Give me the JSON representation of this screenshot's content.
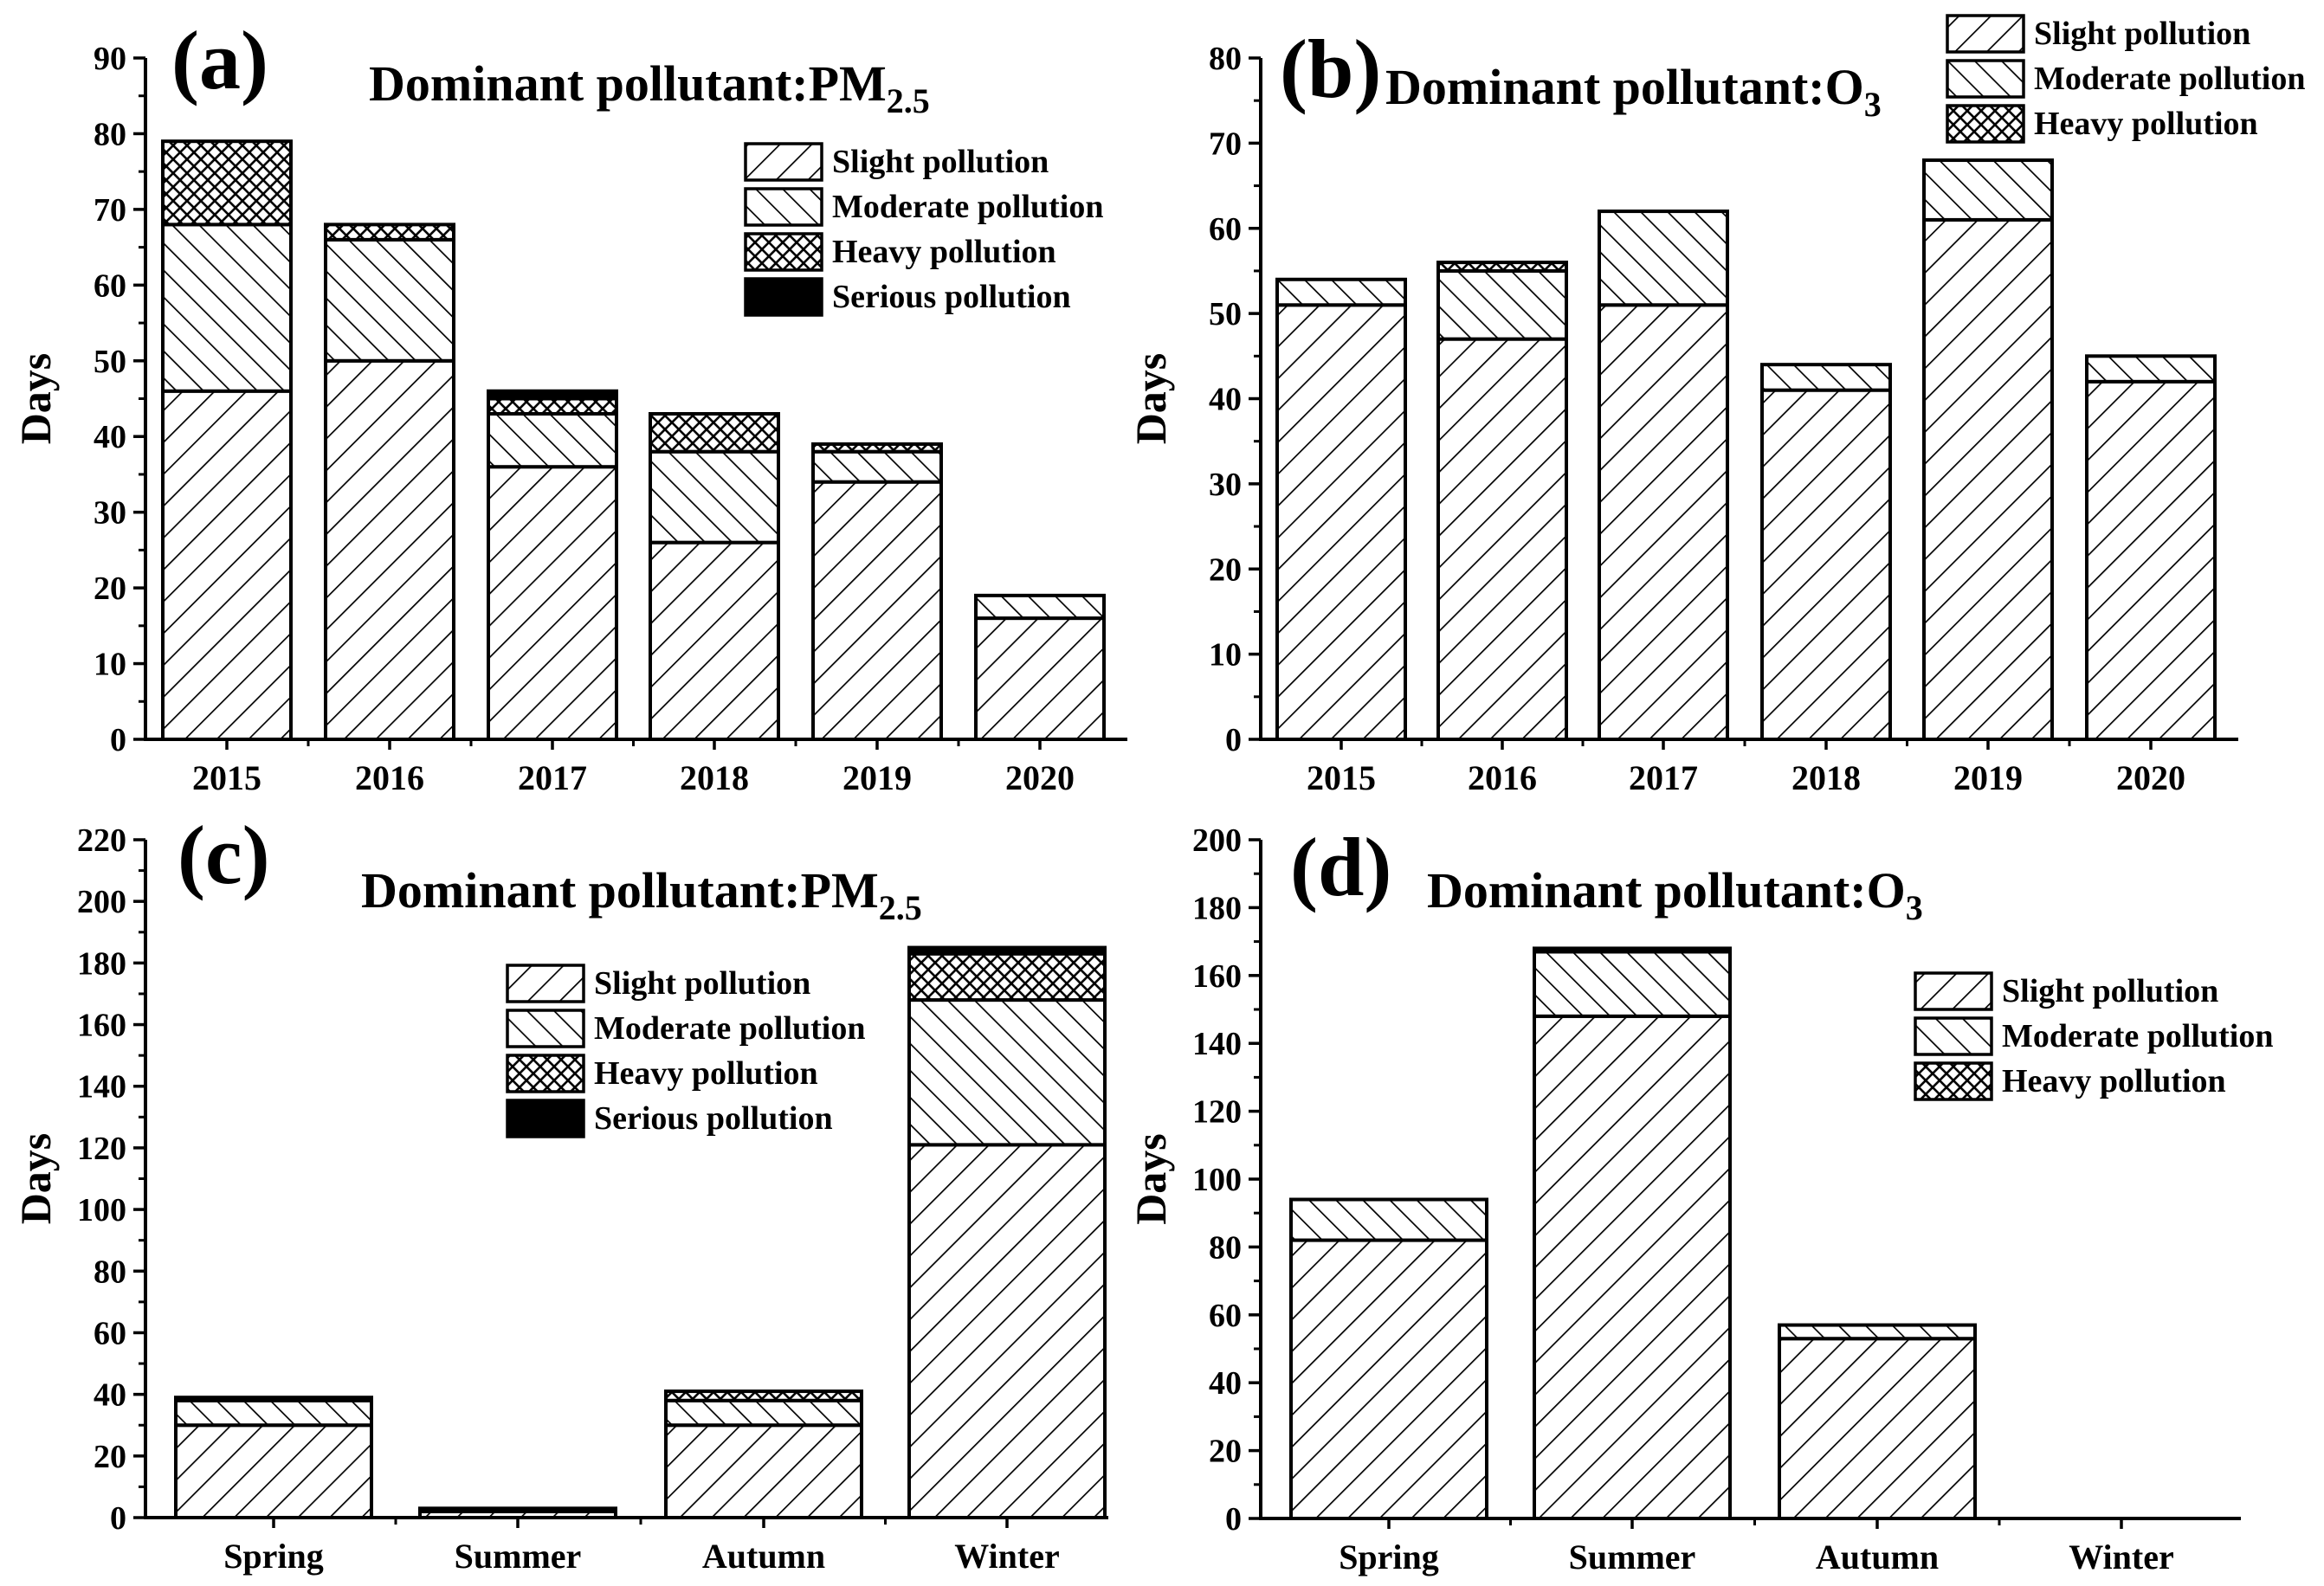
{
  "figure": {
    "colors": {
      "ink": "#000000",
      "paper": "#ffffff"
    },
    "series_patterns": {
      "Slight pollution": "hatch-fwd",
      "Moderate pollution": "hatch-back",
      "Heavy pollution": "crosshatch",
      "Serious pollution": "solid"
    }
  },
  "chart_data": [
    {
      "type": "bar",
      "stacked": true,
      "panel": "(a)",
      "title": "Dominant pollutant:PM",
      "title_sub": "2.5",
      "xlabel": "",
      "ylabel": "Days",
      "ylim": [
        0,
        90
      ],
      "yticks": [
        0,
        10,
        20,
        30,
        40,
        50,
        60,
        70,
        80,
        90
      ],
      "categories": [
        "2015",
        "2016",
        "2017",
        "2018",
        "2019",
        "2020"
      ],
      "series": [
        {
          "name": "Slight pollution",
          "values": [
            46,
            50,
            36,
            26,
            34,
            16
          ]
        },
        {
          "name": "Moderate pollution",
          "values": [
            22,
            16,
            7,
            12,
            4,
            3
          ]
        },
        {
          "name": "Heavy pollution",
          "values": [
            11,
            2,
            2,
            5,
            1,
            0
          ]
        },
        {
          "name": "Serious pollution",
          "values": [
            0,
            0,
            1,
            0,
            0,
            0
          ]
        }
      ],
      "legend": [
        "Slight pollution",
        "Moderate pollution",
        "Heavy pollution",
        "Serious pollution"
      ],
      "legend_position": "top-right"
    },
    {
      "type": "bar",
      "stacked": true,
      "panel": "(b)",
      "title": "Dominant pollutant:O",
      "title_sub": "3",
      "xlabel": "",
      "ylabel": "Days",
      "ylim": [
        0,
        80
      ],
      "yticks": [
        0,
        10,
        20,
        30,
        40,
        50,
        60,
        70,
        80
      ],
      "categories": [
        "2015",
        "2016",
        "2017",
        "2018",
        "2019",
        "2020"
      ],
      "series": [
        {
          "name": "Slight pollution",
          "values": [
            51,
            47,
            51,
            41,
            61,
            42
          ]
        },
        {
          "name": "Moderate pollution",
          "values": [
            3,
            8,
            11,
            3,
            7,
            3
          ]
        },
        {
          "name": "Heavy pollution",
          "values": [
            0,
            1,
            0,
            0,
            0,
            0
          ]
        }
      ],
      "legend": [
        "Slight pollution",
        "Moderate pollution",
        "Heavy pollution"
      ],
      "legend_position": "top-right"
    },
    {
      "type": "bar",
      "stacked": true,
      "panel": "(c)",
      "title": "Dominant pollutant:PM",
      "title_sub": "2.5",
      "xlabel": "",
      "ylabel": "Days",
      "ylim": [
        0,
        220
      ],
      "yticks": [
        0,
        20,
        40,
        60,
        80,
        100,
        120,
        140,
        160,
        180,
        200,
        220
      ],
      "categories": [
        "Spring",
        "Summer",
        "Autumn",
        "Winter"
      ],
      "series": [
        {
          "name": "Slight pollution",
          "values": [
            30,
            2,
            30,
            121
          ]
        },
        {
          "name": "Moderate pollution",
          "values": [
            8,
            1,
            8,
            47
          ]
        },
        {
          "name": "Heavy pollution",
          "values": [
            1,
            0,
            3,
            15
          ]
        },
        {
          "name": "Serious pollution",
          "values": [
            0,
            0,
            0,
            2
          ]
        }
      ],
      "legend": [
        "Slight pollution",
        "Moderate pollution",
        "Heavy pollution",
        "Serious pollution"
      ],
      "legend_position": "center"
    },
    {
      "type": "bar",
      "stacked": true,
      "panel": "(d)",
      "title": "Dominant pollutant:O",
      "title_sub": "3",
      "xlabel": "",
      "ylabel": "Days",
      "ylim": [
        0,
        200
      ],
      "yticks": [
        0,
        20,
        40,
        60,
        80,
        100,
        120,
        140,
        160,
        180,
        200
      ],
      "categories": [
        "Spring",
        "Summer",
        "Autumn",
        "Winter"
      ],
      "series": [
        {
          "name": "Slight pollution",
          "values": [
            82,
            148,
            53,
            0
          ]
        },
        {
          "name": "Moderate pollution",
          "values": [
            12,
            19,
            4,
            0
          ]
        },
        {
          "name": "Heavy pollution",
          "values": [
            0,
            1,
            0,
            0
          ]
        }
      ],
      "legend": [
        "Slight pollution",
        "Moderate pollution",
        "Heavy pollution"
      ],
      "legend_position": "top-right"
    }
  ]
}
